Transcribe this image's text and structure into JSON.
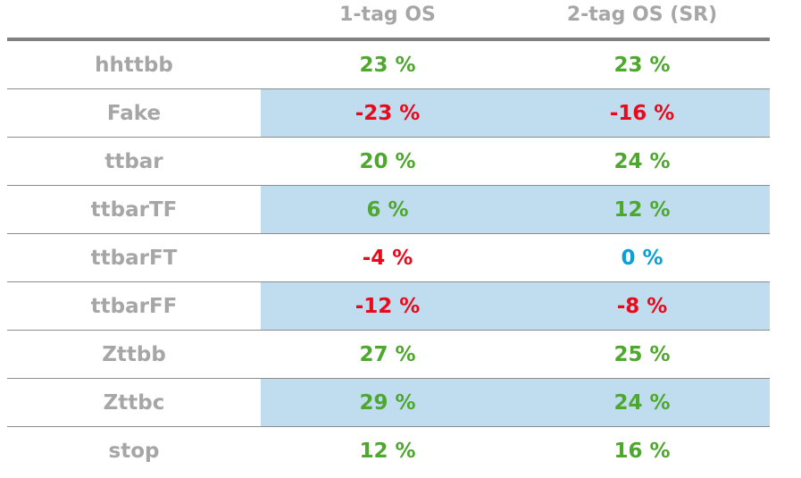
{
  "columns": [
    "",
    "1-tag OS",
    "2-tag OS (SR)"
  ],
  "colors": {
    "positive": "#4ea72e",
    "negative": "#e8091a",
    "zero": "#0aa0d6",
    "label": "#a6a6a6",
    "band": "#c0dcef"
  },
  "rows": [
    {
      "label": "hhttbb",
      "os1": "23 %",
      "os2": "23 %",
      "s1": "positive",
      "s2": "positive",
      "shade": false
    },
    {
      "label": "Fake",
      "os1": "-23 %",
      "os2": "-16 %",
      "s1": "negative",
      "s2": "negative",
      "shade": true
    },
    {
      "label": "ttbar",
      "os1": "20 %",
      "os2": "24 %",
      "s1": "positive",
      "s2": "positive",
      "shade": false
    },
    {
      "label": "ttbarTF",
      "os1": "6 %",
      "os2": "12 %",
      "s1": "positive",
      "s2": "positive",
      "shade": true
    },
    {
      "label": "ttbarFT",
      "os1": "-4 %",
      "os2": "0 %",
      "s1": "negative",
      "s2": "zero",
      "shade": false
    },
    {
      "label": "ttbarFF",
      "os1": "-12 %",
      "os2": "-8 %",
      "s1": "negative",
      "s2": "negative",
      "shade": true
    },
    {
      "label": "Zttbb",
      "os1": "27 %",
      "os2": "25 %",
      "s1": "positive",
      "s2": "positive",
      "shade": false
    },
    {
      "label": "Zttbc",
      "os1": "29 %",
      "os2": "24 %",
      "s1": "positive",
      "s2": "positive",
      "shade": true
    },
    {
      "label": "stop",
      "os1": "12 %",
      "os2": "16 %",
      "s1": "positive",
      "s2": "positive",
      "shade": false
    }
  ]
}
